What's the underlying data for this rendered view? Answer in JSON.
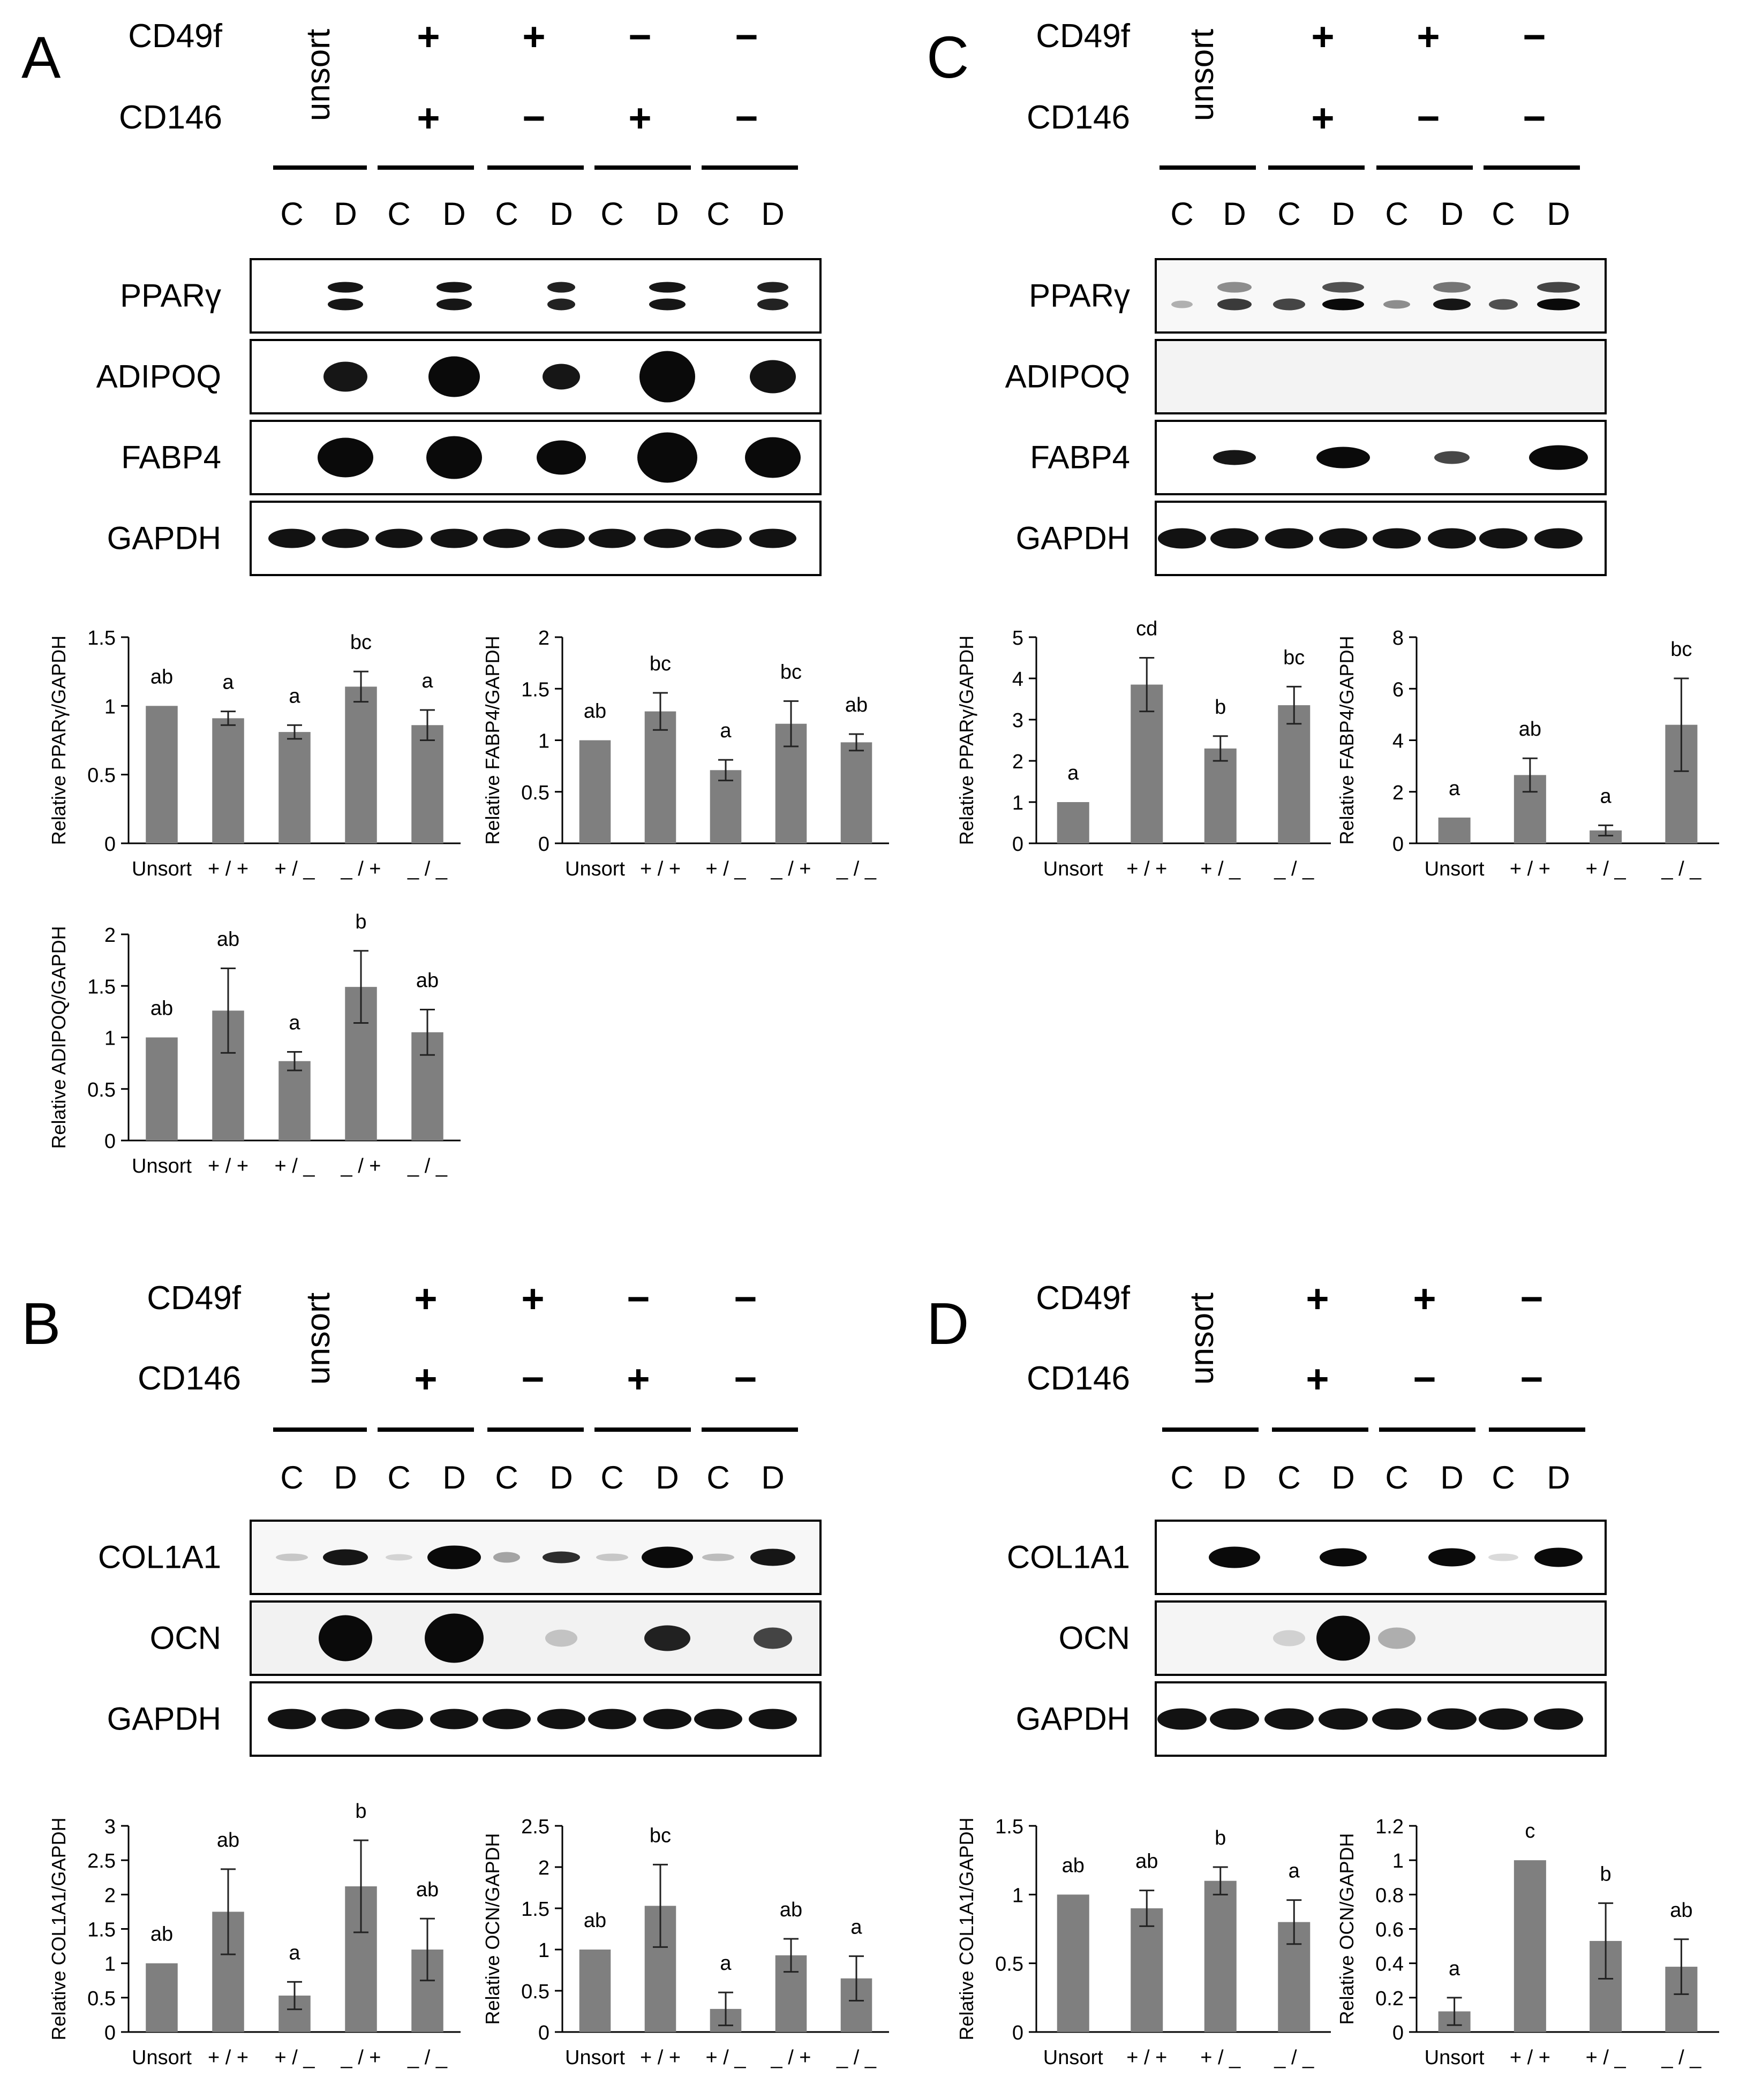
{
  "panels": [
    {
      "letter": "A",
      "header": {
        "row1_label": "CD49f",
        "row2_label": "CD146",
        "unsort_label": "unsort",
        "row1_signs": [
          "+",
          "+",
          "−",
          "−"
        ],
        "row2_signs": [
          "+",
          "−",
          "+",
          "−"
        ],
        "lane_labels": [
          "C",
          "D",
          "C",
          "D",
          "C",
          "D",
          "C",
          "D",
          "C",
          "D"
        ]
      },
      "blot_labels": [
        "PPARγ",
        "ADIPOQ",
        "FABP4",
        "GAPDH"
      ]
    },
    {
      "letter": "C",
      "header": {
        "row1_label": "CD49f",
        "row2_label": "CD146",
        "unsort_label": "unsort",
        "row1_signs": [
          "+",
          "+",
          "−"
        ],
        "row2_signs": [
          "+",
          "−",
          "−"
        ],
        "lane_labels": [
          "C",
          "D",
          "C",
          "D",
          "C",
          "D",
          "C",
          "D"
        ]
      },
      "blot_labels": [
        "PPARγ",
        "ADIPOQ",
        "FABP4",
        "GAPDH"
      ]
    },
    {
      "letter": "B",
      "header": {
        "row1_label": "CD49f",
        "row2_label": "CD146",
        "unsort_label": "unsort",
        "row1_signs": [
          "+",
          "+",
          "−",
          "−"
        ],
        "row2_signs": [
          "+",
          "−",
          "+",
          "−"
        ],
        "lane_labels": [
          "C",
          "D",
          "C",
          "D",
          "C",
          "D",
          "C",
          "D",
          "C",
          "D"
        ]
      },
      "blot_labels": [
        "COL1A1",
        "OCN",
        "GAPDH"
      ]
    },
    {
      "letter": "D",
      "header": {
        "row1_label": "CD49f",
        "row2_label": "CD146",
        "unsort_label": "unsort",
        "row1_signs": [
          "+",
          "+",
          "−"
        ],
        "row2_signs": [
          "+",
          "−",
          "−"
        ],
        "lane_labels": [
          "C",
          "D",
          "C",
          "D",
          "C",
          "D",
          "C",
          "D"
        ]
      },
      "blot_labels": [
        "COL1A1",
        "OCN",
        "GAPDH"
      ]
    }
  ],
  "colors": {
    "bar": "#7f7f7f",
    "axis": "#000000",
    "blot_bg": "#ffffff",
    "band": "#0a0a0a"
  },
  "chart_data": [
    {
      "type": "bar",
      "panel": "A",
      "ylabel": "Relative PPARγ/GAPDH",
      "categories": [
        "Unsort",
        "+ / +",
        "+ / _",
        "_ / +",
        "_ / _"
      ],
      "values": [
        1.0,
        0.91,
        0.81,
        1.14,
        0.86
      ],
      "errors": [
        0,
        0.05,
        0.05,
        0.11,
        0.11
      ],
      "annotations": [
        "ab",
        "a",
        "a",
        "bc",
        "a"
      ],
      "ylim": [
        0,
        1.5
      ],
      "yticks": [
        0,
        0.5,
        1,
        1.5
      ],
      "ytick_labels": [
        "0",
        "0.5",
        "1",
        "1.5"
      ]
    },
    {
      "type": "bar",
      "panel": "A",
      "ylabel": "Relative FABP4/GAPDH",
      "categories": [
        "Unsort",
        "+ / +",
        "+ / _",
        "_ / +",
        "_ / _"
      ],
      "values": [
        1.0,
        1.28,
        0.71,
        1.16,
        0.98
      ],
      "errors": [
        0,
        0.18,
        0.1,
        0.22,
        0.08
      ],
      "annotations": [
        "ab",
        "bc",
        "a",
        "bc",
        "ab"
      ],
      "ylim": [
        0,
        2
      ],
      "yticks": [
        0,
        0.5,
        1,
        1.5,
        2
      ],
      "ytick_labels": [
        "0",
        "0.5",
        "1",
        "1.5",
        "2"
      ]
    },
    {
      "type": "bar",
      "panel": "A",
      "ylabel": "Relative ADIPOQ/GAPDH",
      "categories": [
        "Unsort",
        "+ / +",
        "+ / _",
        "_ / +",
        "_ / _"
      ],
      "values": [
        1.0,
        1.26,
        0.77,
        1.49,
        1.05
      ],
      "errors": [
        0,
        0.41,
        0.09,
        0.35,
        0.22
      ],
      "annotations": [
        "ab",
        "ab",
        "a",
        "b",
        "ab"
      ],
      "ylim": [
        0,
        2
      ],
      "yticks": [
        0,
        0.5,
        1,
        1.5,
        2
      ],
      "ytick_labels": [
        "0",
        "0.5",
        "1",
        "1.5",
        "2"
      ]
    },
    {
      "type": "bar",
      "panel": "C",
      "ylabel": "Relative PPARγ/GAPDH",
      "categories": [
        "Unsort",
        "+ / +",
        "+ / _",
        "_ / _"
      ],
      "values": [
        1.0,
        3.85,
        2.3,
        3.35
      ],
      "errors": [
        0,
        0.65,
        0.3,
        0.45
      ],
      "annotations": [
        "a",
        "cd",
        "b",
        "bc"
      ],
      "ylim": [
        0,
        5
      ],
      "yticks": [
        0,
        1,
        2,
        3,
        4,
        5
      ],
      "ytick_labels": [
        "0",
        "1",
        "2",
        "3",
        "4",
        "5"
      ]
    },
    {
      "type": "bar",
      "panel": "C",
      "ylabel": "Relative FABP4/GAPDH",
      "categories": [
        "Unsort",
        "+ / +",
        "+ / _",
        "_ / _"
      ],
      "values": [
        1.0,
        2.65,
        0.5,
        4.6
      ],
      "errors": [
        0,
        0.65,
        0.2,
        1.8
      ],
      "annotations": [
        "a",
        "ab",
        "a",
        "bc"
      ],
      "ylim": [
        0,
        8
      ],
      "yticks": [
        0,
        2,
        4,
        6,
        8
      ],
      "ytick_labels": [
        "0",
        "2",
        "4",
        "6",
        "8"
      ]
    },
    {
      "type": "bar",
      "panel": "B",
      "ylabel": "Relative COL1A1/GAPDH",
      "categories": [
        "Unsort",
        "+ / +",
        "+ / _",
        "_ / +",
        "_ / _"
      ],
      "values": [
        1.0,
        1.75,
        0.53,
        2.12,
        1.2
      ],
      "errors": [
        0,
        0.62,
        0.2,
        0.67,
        0.45
      ],
      "annotations": [
        "ab",
        "ab",
        "a",
        "b",
        "ab"
      ],
      "ylim": [
        0,
        3
      ],
      "yticks": [
        0,
        0.5,
        1,
        1.5,
        2,
        2.5,
        3
      ],
      "ytick_labels": [
        "0",
        "0.5",
        "1",
        "1.5",
        "2",
        "2.5",
        "3"
      ]
    },
    {
      "type": "bar",
      "panel": "B",
      "ylabel": "Relative OCN/GAPDH",
      "categories": [
        "Unsort",
        "+ / +",
        "+ / _",
        "_ / +",
        "_ / _"
      ],
      "values": [
        1.0,
        1.53,
        0.28,
        0.93,
        0.65
      ],
      "errors": [
        0,
        0.5,
        0.2,
        0.2,
        0.27
      ],
      "annotations": [
        "ab",
        "bc",
        "a",
        "ab",
        "a"
      ],
      "ylim": [
        0,
        2.5
      ],
      "yticks": [
        0,
        0.5,
        1,
        1.5,
        2,
        2.5
      ],
      "ytick_labels": [
        "0",
        "0.5",
        "1",
        "1.5",
        "2",
        "2.5"
      ]
    },
    {
      "type": "bar",
      "panel": "D",
      "ylabel": "Relative COL1A1/GAPDH",
      "categories": [
        "Unsort",
        "+ / +",
        "+ / _",
        "_ / _"
      ],
      "values": [
        1.0,
        0.9,
        1.1,
        0.8
      ],
      "errors": [
        0,
        0.13,
        0.1,
        0.16
      ],
      "annotations": [
        "ab",
        "ab",
        "b",
        "a"
      ],
      "ylim": [
        0,
        1.5
      ],
      "yticks": [
        0,
        0.5,
        1,
        1.5
      ],
      "ytick_labels": [
        "0",
        "0.5",
        "1",
        "1.5"
      ]
    },
    {
      "type": "bar",
      "panel": "D",
      "ylabel": "Relative OCN/GAPDH",
      "categories": [
        "Unsort",
        "+ / +",
        "+ / _",
        "_ / _"
      ],
      "values": [
        0.12,
        1.0,
        0.53,
        0.38
      ],
      "errors": [
        0.08,
        0,
        0.22,
        0.16
      ],
      "annotations": [
        "a",
        "c",
        "b",
        "ab"
      ],
      "ylim": [
        0,
        1.2
      ],
      "yticks": [
        0,
        0.2,
        0.4,
        0.6,
        0.8,
        1,
        1.2
      ],
      "ytick_labels": [
        "0",
        "0.2",
        "0.4",
        "0.6",
        "0.8",
        "1",
        "1.2"
      ]
    }
  ]
}
